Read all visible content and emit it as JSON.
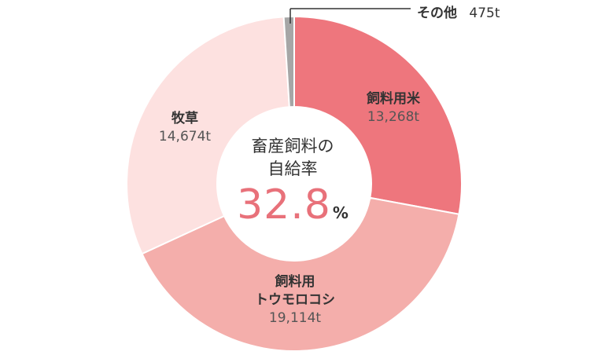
{
  "chart_data": {
    "type": "pie",
    "categories": [
      "飼料用米",
      "飼料用トウモロコシ",
      "牧草",
      "その他"
    ],
    "values": [
      13268,
      19114,
      14674,
      475
    ],
    "unit": "t",
    "value_labels": [
      "13,268t",
      "19,114t",
      "14,674t",
      "475t"
    ],
    "colors": [
      "#ee767d",
      "#f4aeab",
      "#fde1e0",
      "#a6a6a6"
    ],
    "center_title_line1": "畜産飼料の",
    "center_title_line2": "自給率",
    "center_value": "32.8",
    "center_unit": "%"
  },
  "labels": {
    "rice_name": "飼料用米",
    "corn_name_line1": "飼料用",
    "corn_name_line2": "トウモロコシ",
    "grass_name": "牧草",
    "other_name": "その他"
  }
}
